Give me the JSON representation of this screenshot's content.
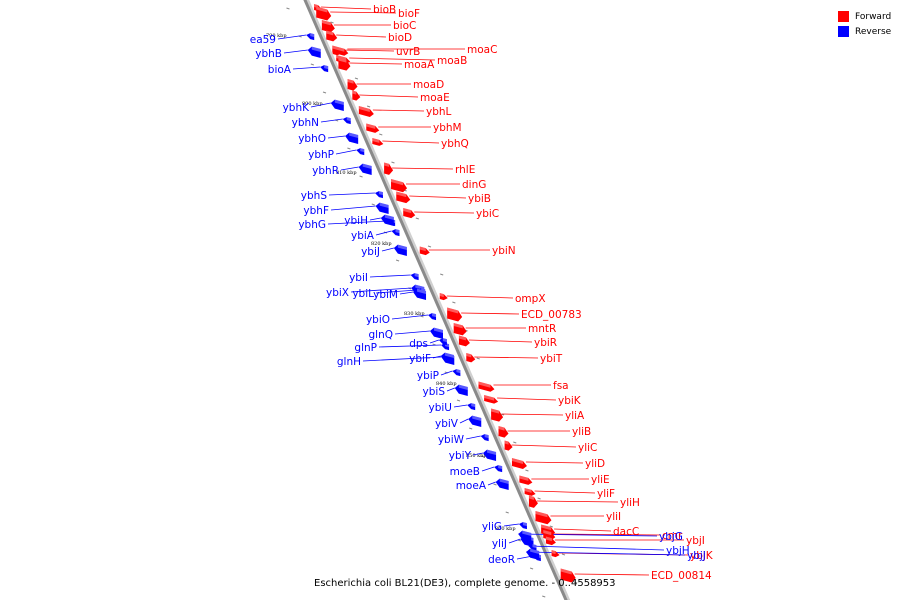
{
  "legend": {
    "forward": "Forward",
    "reverse": "Reverse",
    "forward_color": "#ff0000",
    "reverse_color": "#0000ff"
  },
  "caption": "Escherichia coli BL21(DE3), complete genome. - 0..4558953",
  "scale_labels": [
    "790 kbp",
    "800 kbp",
    "810 kbp",
    "820 kbp",
    "830 kbp",
    "840 kbp",
    "850 kbp",
    "860 kbp"
  ],
  "forward_genes": [
    "bioB",
    "bioF",
    "bioC",
    "bioD",
    "uvrB",
    "moaC",
    "moaB",
    "moaA",
    "moaD",
    "moaE",
    "ybhL",
    "ybhM",
    "ybhQ",
    "rhlE",
    "dinG",
    "ybiB",
    "ybiC",
    "ybiN",
    "ompX",
    "ECD_00783",
    "mntR",
    "ybiR",
    "ybiT",
    "fsa",
    "ybiK",
    "yliA",
    "yliB",
    "yliC",
    "yliD",
    "yliE",
    "yliF",
    "yliH",
    "yliI",
    "dacC",
    "cmr",
    "ybjI",
    "ybjK",
    "ECD_00814"
  ],
  "reverse_genes": [
    "ea59",
    "ybhB",
    "bioA",
    "ybhK",
    "ybhN",
    "ybhO",
    "ybhP",
    "ybhR",
    "ybhS",
    "ybhF",
    "ybhG",
    "ybiH",
    "ybiA",
    "ybiJ",
    "ybiI",
    "ybiX",
    "ybiL",
    "ybiM",
    "ybiO",
    "glnQ",
    "glnP",
    "glnH",
    "dps",
    "ybiF",
    "ybiP",
    "ybiS",
    "ybiU",
    "ybiV",
    "ybiW",
    "ybiY",
    "moeB",
    "moeA",
    "yliG",
    "yliJ",
    "deoR",
    "ybjG",
    "ybjH",
    "ybjJ"
  ]
}
